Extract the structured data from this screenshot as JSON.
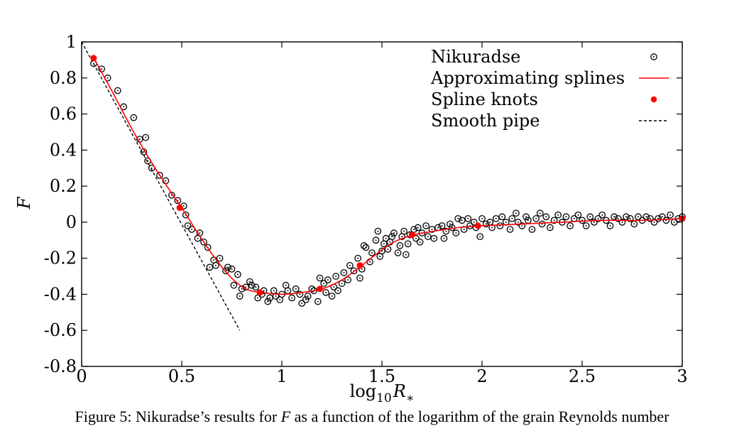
{
  "caption": {
    "prefix": "Figure 5: Nikuradse’s results for ",
    "symbol": "F",
    "suffix": " as a function of the logarithm of the grain Reynolds number"
  },
  "chart_data": {
    "type": "scatter",
    "xlabel": {
      "base": "log",
      "sub": "10",
      "var": "R",
      "varsub": "∗"
    },
    "ylabel": "F",
    "xlim": [
      0,
      3
    ],
    "ylim": [
      -0.8,
      1
    ],
    "xticks": [
      0,
      0.5,
      1,
      1.5,
      2,
      2.5,
      3
    ],
    "xtick_labels": [
      "0",
      "0.5",
      "1",
      "1.5",
      "2",
      "2.5",
      "3"
    ],
    "yticks": [
      -0.8,
      -0.6,
      -0.4,
      -0.2,
      0,
      0.2,
      0.4,
      0.6,
      0.8,
      1
    ],
    "ytick_labels": [
      "-0.8",
      "-0.6",
      "-0.4",
      "-0.2",
      "0",
      "0.2",
      "0.4",
      "0.6",
      "0.8",
      "1"
    ],
    "grid": false,
    "legend_position": "top-right",
    "colors": {
      "nikuradse": "#000000",
      "spline": "#ff0000",
      "knots": "#ff0000",
      "smooth": "#000000"
    },
    "series": [
      {
        "name": "Nikuradse",
        "kind": "scatter",
        "points": [
          [
            0.06,
            0.88
          ],
          [
            0.1,
            0.85
          ],
          [
            0.13,
            0.8
          ],
          [
            0.18,
            0.73
          ],
          [
            0.21,
            0.64
          ],
          [
            0.26,
            0.58
          ],
          [
            0.29,
            0.46
          ],
          [
            0.31,
            0.39
          ],
          [
            0.32,
            0.47
          ],
          [
            0.33,
            0.34
          ],
          [
            0.35,
            0.3
          ],
          [
            0.39,
            0.26
          ],
          [
            0.42,
            0.23
          ],
          [
            0.45,
            0.15
          ],
          [
            0.48,
            0.12
          ],
          [
            0.51,
            0.09
          ],
          [
            0.52,
            0.04
          ],
          [
            0.53,
            -0.02
          ],
          [
            0.55,
            -0.04
          ],
          [
            0.58,
            -0.09
          ],
          [
            0.59,
            -0.06
          ],
          [
            0.61,
            -0.11
          ],
          [
            0.63,
            -0.14
          ],
          [
            0.64,
            -0.25
          ],
          [
            0.66,
            -0.21
          ],
          [
            0.67,
            -0.24
          ],
          [
            0.69,
            -0.2
          ],
          [
            0.72,
            -0.27
          ],
          [
            0.73,
            -0.25
          ],
          [
            0.75,
            -0.26
          ],
          [
            0.76,
            -0.35
          ],
          [
            0.78,
            -0.29
          ],
          [
            0.79,
            -0.41
          ],
          [
            0.8,
            -0.37
          ],
          [
            0.82,
            -0.36
          ],
          [
            0.84,
            -0.33
          ],
          [
            0.85,
            -0.35
          ],
          [
            0.87,
            -0.36
          ],
          [
            0.88,
            -0.42
          ],
          [
            0.9,
            -0.4
          ],
          [
            0.91,
            -0.38
          ],
          [
            0.93,
            -0.44
          ],
          [
            0.94,
            -0.42
          ],
          [
            0.96,
            -0.38
          ],
          [
            0.97,
            -0.41
          ],
          [
            0.99,
            -0.43
          ],
          [
            1.0,
            -0.4
          ],
          [
            1.02,
            -0.35
          ],
          [
            1.03,
            -0.38
          ],
          [
            1.05,
            -0.42
          ],
          [
            1.07,
            -0.37
          ],
          [
            1.09,
            -0.4
          ],
          [
            1.1,
            -0.45
          ],
          [
            1.12,
            -0.43
          ],
          [
            1.13,
            -0.41
          ],
          [
            1.15,
            -0.37
          ],
          [
            1.16,
            -0.38
          ],
          [
            1.18,
            -0.44
          ],
          [
            1.19,
            -0.31
          ],
          [
            1.21,
            -0.34
          ],
          [
            1.22,
            -0.39
          ],
          [
            1.23,
            -0.32
          ],
          [
            1.25,
            -0.41
          ],
          [
            1.26,
            -0.36
          ],
          [
            1.27,
            -0.3
          ],
          [
            1.28,
            -0.38
          ],
          [
            1.3,
            -0.34
          ],
          [
            1.31,
            -0.28
          ],
          [
            1.33,
            -0.32
          ],
          [
            1.34,
            -0.24
          ],
          [
            1.36,
            -0.27
          ],
          [
            1.38,
            -0.2
          ],
          [
            1.39,
            -0.31
          ],
          [
            1.4,
            -0.26
          ],
          [
            1.41,
            -0.13
          ],
          [
            1.42,
            -0.14
          ],
          [
            1.44,
            -0.22
          ],
          [
            1.45,
            -0.17
          ],
          [
            1.47,
            -0.1
          ],
          [
            1.48,
            -0.05
          ],
          [
            1.49,
            -0.19
          ],
          [
            1.5,
            -0.16
          ],
          [
            1.51,
            -0.12
          ],
          [
            1.52,
            -0.09
          ],
          [
            1.53,
            -0.15
          ],
          [
            1.54,
            -0.11
          ],
          [
            1.55,
            -0.08
          ],
          [
            1.56,
            -0.06
          ],
          [
            1.58,
            -0.17
          ],
          [
            1.59,
            -0.13
          ],
          [
            1.6,
            -0.08
          ],
          [
            1.61,
            -0.05
          ],
          [
            1.62,
            -0.18
          ],
          [
            1.63,
            -0.12
          ],
          [
            1.64,
            -0.07
          ],
          [
            1.66,
            -0.04
          ],
          [
            1.67,
            -0.09
          ],
          [
            1.68,
            -0.03
          ],
          [
            1.69,
            -0.11
          ],
          [
            1.7,
            -0.06
          ],
          [
            1.72,
            -0.02
          ],
          [
            1.73,
            -0.08
          ],
          [
            1.75,
            -0.04
          ],
          [
            1.76,
            -0.09
          ],
          [
            1.78,
            -0.03
          ],
          [
            1.8,
            -0.02
          ],
          [
            1.81,
            -0.09
          ],
          [
            1.82,
            -0.05
          ],
          [
            1.84,
            -0.01
          ],
          [
            1.85,
            -0.03
          ],
          [
            1.87,
            -0.06
          ],
          [
            1.88,
            0.02
          ],
          [
            1.9,
            0.01
          ],
          [
            1.91,
            -0.04
          ],
          [
            1.93,
            0.02
          ],
          [
            1.94,
            -0.02
          ],
          [
            1.96,
            0.0
          ],
          [
            1.97,
            -0.03
          ],
          [
            1.99,
            -0.08
          ],
          [
            2.0,
            0.02
          ],
          [
            2.02,
            -0.01
          ],
          [
            2.04,
            0.0
          ],
          [
            2.05,
            -0.03
          ],
          [
            2.07,
            0.02
          ],
          [
            2.09,
            -0.02
          ],
          [
            2.1,
            0.03
          ],
          [
            2.12,
            0.0
          ],
          [
            2.14,
            -0.04
          ],
          [
            2.15,
            0.02
          ],
          [
            2.17,
            0.05
          ],
          [
            2.18,
            0.0
          ],
          [
            2.2,
            -0.02
          ],
          [
            2.22,
            0.03
          ],
          [
            2.23,
            0.01
          ],
          [
            2.25,
            -0.04
          ],
          [
            2.27,
            0.02
          ],
          [
            2.29,
            0.05
          ],
          [
            2.3,
            -0.01
          ],
          [
            2.32,
            0.03
          ],
          [
            2.34,
            -0.03
          ],
          [
            2.36,
            0.01
          ],
          [
            2.38,
            0.04
          ],
          [
            2.4,
            0.0
          ],
          [
            2.42,
            0.03
          ],
          [
            2.44,
            -0.02
          ],
          [
            2.46,
            0.02
          ],
          [
            2.48,
            0.04
          ],
          [
            2.5,
            0.01
          ],
          [
            2.52,
            -0.02
          ],
          [
            2.54,
            0.03
          ],
          [
            2.56,
            0.0
          ],
          [
            2.58,
            0.02
          ],
          [
            2.6,
            0.04
          ],
          [
            2.62,
            0.01
          ],
          [
            2.64,
            -0.02
          ],
          [
            2.66,
            0.03
          ],
          [
            2.68,
            0.02
          ],
          [
            2.7,
            0.0
          ],
          [
            2.72,
            0.03
          ],
          [
            2.74,
            0.02
          ],
          [
            2.76,
            -0.01
          ],
          [
            2.78,
            0.03
          ],
          [
            2.8,
            0.01
          ],
          [
            2.82,
            0.03
          ],
          [
            2.84,
            0.02
          ],
          [
            2.86,
            0.0
          ],
          [
            2.88,
            0.02
          ],
          [
            2.9,
            0.03
          ],
          [
            2.92,
            0.01
          ],
          [
            2.94,
            0.04
          ],
          [
            2.96,
            0.0
          ],
          [
            2.98,
            0.02
          ],
          [
            3.0,
            0.03
          ]
        ]
      },
      {
        "name": "Approximating splines",
        "kind": "line",
        "points": [
          [
            0.06,
            0.91
          ],
          [
            0.15,
            0.73
          ],
          [
            0.25,
            0.52
          ],
          [
            0.35,
            0.33
          ],
          [
            0.45,
            0.16
          ],
          [
            0.5,
            0.08
          ],
          [
            0.58,
            -0.06
          ],
          [
            0.66,
            -0.19
          ],
          [
            0.74,
            -0.3
          ],
          [
            0.82,
            -0.37
          ],
          [
            0.9,
            -0.39
          ],
          [
            1.0,
            -0.4
          ],
          [
            1.1,
            -0.39
          ],
          [
            1.2,
            -0.37
          ],
          [
            1.3,
            -0.32
          ],
          [
            1.4,
            -0.24
          ],
          [
            1.48,
            -0.17
          ],
          [
            1.56,
            -0.11
          ],
          [
            1.66,
            -0.07
          ],
          [
            1.76,
            -0.05
          ],
          [
            1.88,
            -0.03
          ],
          [
            2.0,
            -0.02
          ],
          [
            2.2,
            -0.01
          ],
          [
            2.4,
            0.0
          ],
          [
            2.6,
            0.01
          ],
          [
            2.8,
            0.01
          ],
          [
            3.0,
            0.02
          ]
        ]
      },
      {
        "name": "Spline knots",
        "kind": "knots",
        "points": [
          [
            0.06,
            0.91
          ],
          [
            0.49,
            0.08
          ],
          [
            0.89,
            -0.39
          ],
          [
            1.19,
            -0.37
          ],
          [
            1.39,
            -0.24
          ],
          [
            1.65,
            -0.07
          ],
          [
            1.98,
            -0.02
          ],
          [
            3.0,
            0.02
          ]
        ]
      },
      {
        "name": "Smooth pipe",
        "kind": "dashed",
        "points": [
          [
            0.0,
            1.0
          ],
          [
            0.79,
            -0.6
          ]
        ]
      }
    ]
  }
}
